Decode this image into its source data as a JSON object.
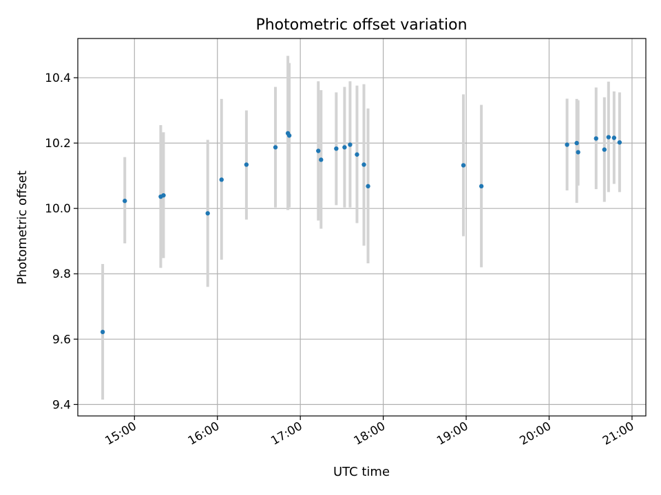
{
  "chart_data": {
    "type": "scatter",
    "title": "Photometric offset variation",
    "xlabel": "UTC time",
    "ylabel": "Photometric offset",
    "x_ticks": [
      "15:00",
      "16:00",
      "17:00",
      "18:00",
      "19:00",
      "20:00",
      "21:00"
    ],
    "y_ticks": [
      "9.4",
      "9.6",
      "9.8",
      "10.0",
      "10.2",
      "10.4"
    ],
    "xlim": [
      "14:19",
      "21:10"
    ],
    "ylim": [
      9.365,
      10.52
    ],
    "grid": true,
    "marker_color": "#1f77b4",
    "errorbar_color": "#d3d3d3",
    "points": [
      {
        "x": "14:37",
        "y": 9.622,
        "ylow": 9.415,
        "yhigh": 9.83
      },
      {
        "x": "14:53",
        "y": 10.023,
        "ylow": 9.893,
        "yhigh": 10.157
      },
      {
        "x": "15:19",
        "y": 10.036,
        "ylow": 9.818,
        "yhigh": 10.255
      },
      {
        "x": "15:21",
        "y": 10.04,
        "ylow": 9.848,
        "yhigh": 10.233
      },
      {
        "x": "15:53",
        "y": 9.985,
        "ylow": 9.76,
        "yhigh": 10.21
      },
      {
        "x": "16:03",
        "y": 10.088,
        "ylow": 9.843,
        "yhigh": 10.335
      },
      {
        "x": "16:21",
        "y": 10.134,
        "ylow": 9.966,
        "yhigh": 10.3
      },
      {
        "x": "16:42",
        "y": 10.187,
        "ylow": 10.003,
        "yhigh": 10.372
      },
      {
        "x": "16:51",
        "y": 10.23,
        "ylow": 9.995,
        "yhigh": 10.467
      },
      {
        "x": "16:52",
        "y": 10.223,
        "ylow": 10.003,
        "yhigh": 10.445
      },
      {
        "x": "17:13",
        "y": 10.176,
        "ylow": 9.963,
        "yhigh": 10.389
      },
      {
        "x": "17:15",
        "y": 10.149,
        "ylow": 9.938,
        "yhigh": 10.362
      },
      {
        "x": "17:26",
        "y": 10.183,
        "ylow": 10.01,
        "yhigh": 10.355
      },
      {
        "x": "17:32",
        "y": 10.187,
        "ylow": 10.003,
        "yhigh": 10.372
      },
      {
        "x": "17:36",
        "y": 10.195,
        "ylow": 10.003,
        "yhigh": 10.389
      },
      {
        "x": "17:41",
        "y": 10.165,
        "ylow": 9.955,
        "yhigh": 10.376
      },
      {
        "x": "17:46",
        "y": 10.134,
        "ylow": 9.886,
        "yhigh": 10.38
      },
      {
        "x": "17:49",
        "y": 10.068,
        "ylow": 9.832,
        "yhigh": 10.306
      },
      {
        "x": "18:58",
        "y": 10.132,
        "ylow": 9.915,
        "yhigh": 10.349
      },
      {
        "x": "19:11",
        "y": 10.068,
        "ylow": 9.82,
        "yhigh": 10.317
      },
      {
        "x": "20:13",
        "y": 10.195,
        "ylow": 10.055,
        "yhigh": 10.336
      },
      {
        "x": "20:20",
        "y": 10.2,
        "ylow": 10.017,
        "yhigh": 10.335
      },
      {
        "x": "20:21",
        "y": 10.172,
        "ylow": 10.07,
        "yhigh": 10.331
      },
      {
        "x": "20:34",
        "y": 10.214,
        "ylow": 10.059,
        "yhigh": 10.37
      },
      {
        "x": "20:40",
        "y": 10.18,
        "ylow": 10.02,
        "yhigh": 10.34
      },
      {
        "x": "20:43",
        "y": 10.218,
        "ylow": 10.05,
        "yhigh": 10.388
      },
      {
        "x": "20:47",
        "y": 10.216,
        "ylow": 10.075,
        "yhigh": 10.358
      },
      {
        "x": "20:51",
        "y": 10.202,
        "ylow": 10.05,
        "yhigh": 10.355
      }
    ]
  }
}
